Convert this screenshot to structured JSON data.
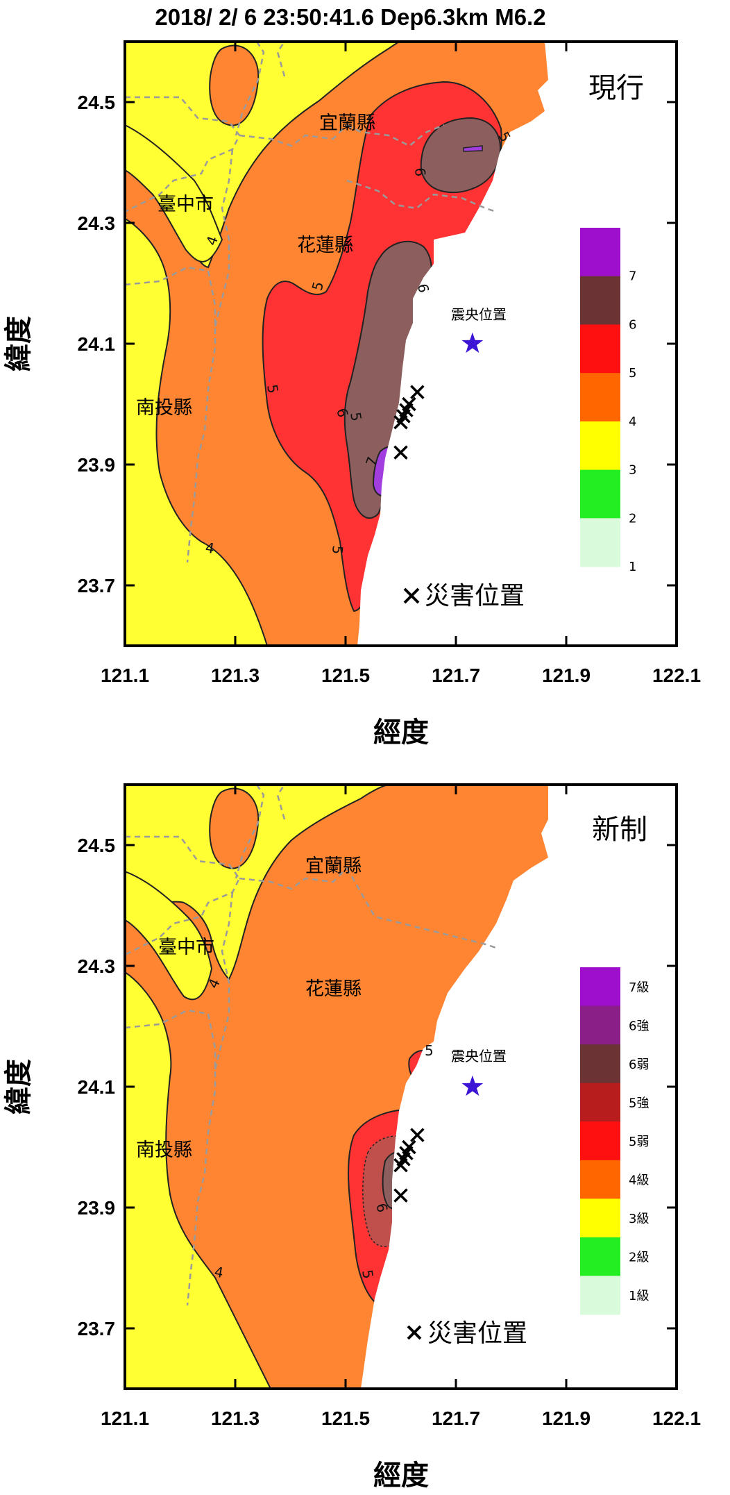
{
  "title": "2018/ 2/ 6 23:50:41.6 Dep6.3km M6.2",
  "xaxis": {
    "label": "經度",
    "ticks": [
      "121.1",
      "121.3",
      "121.5",
      "121.7",
      "121.9",
      "122.1"
    ],
    "range": [
      121.1,
      122.1
    ]
  },
  "yaxis": {
    "label": "緯度",
    "ticks": [
      "24.5",
      "24.3",
      "24.1",
      "23.9",
      "23.7"
    ],
    "range": [
      23.6,
      24.6
    ]
  },
  "labels": {
    "epicenter": "震央位置",
    "disaster": "災害位置",
    "yilan": "宜蘭縣",
    "taichung": "臺中市",
    "hualien": "花蓮縣",
    "nantou": "南投縣"
  },
  "epicenter": {
    "lon": 121.73,
    "lat": 24.1
  },
  "disaster_sites": [
    {
      "lon": 121.63,
      "lat": 24.02
    },
    {
      "lon": 121.615,
      "lat": 24.0
    },
    {
      "lon": 121.61,
      "lat": 23.99
    },
    {
      "lon": 121.605,
      "lat": 23.98
    },
    {
      "lon": 121.6,
      "lat": 23.97
    },
    {
      "lon": 121.6,
      "lat": 23.92
    }
  ],
  "panels": [
    {
      "id": "current",
      "scheme": "現行",
      "legend": [
        {
          "label": "7",
          "color": "#9e0fcd"
        },
        {
          "label": "6",
          "color": "#6b3333"
        },
        {
          "label": "5",
          "color": "#ff1010"
        },
        {
          "label": "4",
          "color": "#ff6600"
        },
        {
          "label": "3",
          "color": "#ffff00"
        },
        {
          "label": "2",
          "color": "#22ee22"
        },
        {
          "label": "1",
          "color": "#d9fbdc"
        }
      ],
      "contour_labels": [
        "4",
        "4",
        "5",
        "5",
        "5",
        "5",
        "5",
        "6",
        "6",
        "6",
        "7"
      ]
    },
    {
      "id": "new",
      "scheme": "新制",
      "legend": [
        {
          "label": "7級",
          "color": "#9e0fcd"
        },
        {
          "label": "6強",
          "color": "#8a1f88"
        },
        {
          "label": "6弱",
          "color": "#6b3333"
        },
        {
          "label": "5強",
          "color": "#b81d1d"
        },
        {
          "label": "5弱",
          "color": "#ff1010"
        },
        {
          "label": "4級",
          "color": "#ff6600"
        },
        {
          "label": "3級",
          "color": "#ffff00"
        },
        {
          "label": "2級",
          "color": "#22ee22"
        },
        {
          "label": "1級",
          "color": "#d9fbdc"
        }
      ],
      "contour_labels": [
        "4",
        "4",
        "5",
        "5",
        "6"
      ]
    }
  ],
  "colors": {
    "intensity3": "#ffff33",
    "intensity4": "#ff8533",
    "intensity5": "#ff3333",
    "intensity5s": "#e04848",
    "intensity6": "#8c5e5e",
    "intensity6s": "#c0504c",
    "intensity7": "#a23de0",
    "epicenter": "#3b14d6",
    "boundary": "#9a9a9a"
  }
}
